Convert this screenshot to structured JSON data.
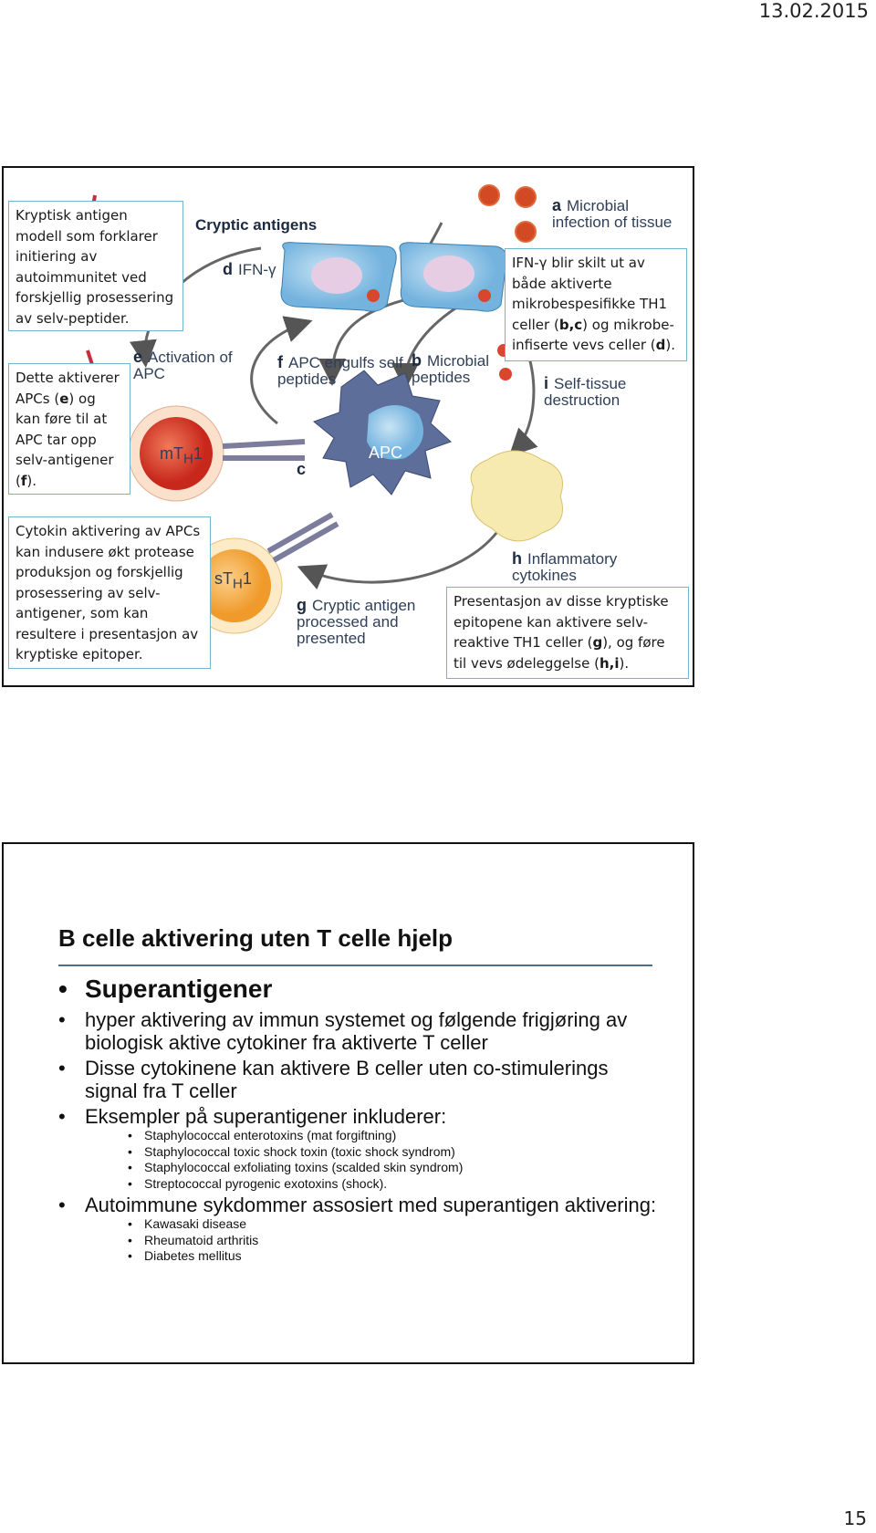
{
  "header": {
    "date": "13.02.2015"
  },
  "slide1": {
    "figure": {
      "title": "Cryptic antigens",
      "labels": [
        {
          "letter": "a",
          "text": "Microbial infection of tissue"
        },
        {
          "letter": "d",
          "text": "IFN-γ"
        },
        {
          "letter": "e",
          "text": "Activation of APC"
        },
        {
          "letter": "f",
          "text": "APC engulfs self peptides"
        },
        {
          "letter": "b",
          "text": "Microbial peptides"
        },
        {
          "letter": "i",
          "text": "Self-tissue destruction"
        },
        {
          "letter": "c"
        },
        {
          "letter": "g",
          "text": "Cryptic antigen processed and presented"
        },
        {
          "letter": "h",
          "text": "Inflammatory cytokines"
        }
      ],
      "cells": [
        {
          "prefix": "mT",
          "sub": "H",
          "suffix": "1"
        },
        {
          "prefix": "sT",
          "sub": "H",
          "suffix": "1"
        },
        {
          "prefix": "APC"
        }
      ]
    },
    "callouts": [
      [
        "Kryptisk antigen modell som forklarer initiering av autoimmunitet ved forskjellig prosessering av selv-peptider."
      ],
      [
        "Dette aktiverer APCs (",
        "e",
        ") og kan føre til at APC tar opp selv-antigener (",
        "f",
        ")."
      ],
      [
        "Cytokin aktivering av APCs kan indusere økt protease produksjon og forskjellig prosessering av selv-antigener, som kan resultere i presentasjon av kryptiske epitoper."
      ],
      [
        "IFN-γ blir skilt ut av både aktiverte mikrobespesifikke TH1 celler (",
        "b,c",
        ") og mikrobe-infiserte vevs celler (",
        "d",
        ")."
      ],
      [
        "Presentasjon av disse kryptiske epitopene kan aktivere selv-reaktive TH1 celler (",
        "g",
        "), og føre til vevs ødeleggelse (",
        "h,i",
        ")."
      ]
    ]
  },
  "slide2": {
    "title": "B celle aktivering uten T celle hjelp",
    "bullets": [
      {
        "level": 0,
        "text": "Superantigener"
      },
      {
        "level": 1,
        "text": "hyper aktivering av immun systemet og følgende frigjøring av biologisk aktive cytokiner fra aktiverte T celler"
      },
      {
        "level": 1,
        "text": "Disse cytokinene kan aktivere B celler uten co-stimulerings signal fra T celler"
      },
      {
        "level": 1,
        "text": "Eksempler på superantigener inkluderer:"
      },
      {
        "level": 2,
        "text": "Staphylococcal enterotoxins (mat forgiftning)"
      },
      {
        "level": 2,
        "text": "Staphylococcal toxic shock toxin (toxic shock syndrom)"
      },
      {
        "level": 2,
        "text": "Staphylococcal exfoliating toxins (scalded skin syndrom)"
      },
      {
        "level": 2,
        "text": "Streptococcal pyrogenic exotoxins (shock)."
      },
      {
        "level": 1,
        "text": "Autoimmune sykdommer assosiert med superantigen aktivering:"
      },
      {
        "level": 2,
        "text": "Kawasaki disease"
      },
      {
        "level": 2,
        "text": "Rheumatoid arthritis"
      },
      {
        "level": 2,
        "text": "Diabetes mellitus"
      }
    ]
  },
  "footer": {
    "page": "15"
  }
}
